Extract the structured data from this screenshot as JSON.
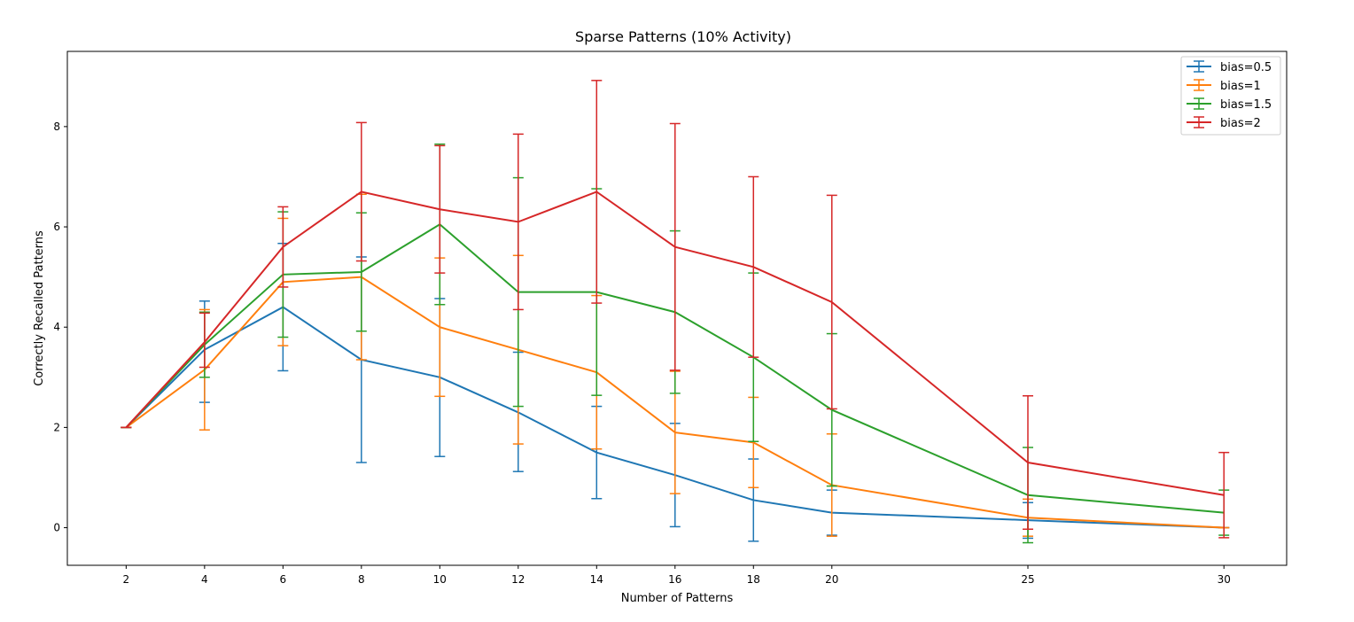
{
  "chart_data": {
    "type": "line",
    "title": "Sparse Patterns (10% Activity)",
    "xlabel": "Number of Patterns",
    "ylabel": "Correctly Recalled Patterns",
    "x": [
      2,
      4,
      6,
      8,
      10,
      12,
      14,
      16,
      18,
      20,
      25,
      30
    ],
    "xticks": [
      2,
      4,
      6,
      8,
      10,
      12,
      14,
      16,
      18,
      20,
      25,
      30
    ],
    "xlim": [
      0.5,
      31.6
    ],
    "yticks": [
      0,
      2,
      4,
      6,
      8
    ],
    "ylim": [
      -0.75,
      9.5
    ],
    "grid": false,
    "legend_position": "top-right",
    "series": [
      {
        "name": "bias=0.5",
        "color": "#1f77b4",
        "values": [
          2.0,
          3.55,
          4.4,
          3.35,
          3.0,
          2.3,
          1.5,
          1.05,
          0.55,
          0.3,
          0.15,
          0.0
        ],
        "lower": [
          2.0,
          2.5,
          3.13,
          1.3,
          1.42,
          1.12,
          0.58,
          0.02,
          -0.27,
          -0.15,
          -0.21,
          0.0
        ],
        "upper": [
          2.0,
          4.52,
          5.67,
          5.4,
          4.57,
          3.5,
          2.42,
          2.08,
          1.37,
          0.75,
          0.5,
          0.0
        ]
      },
      {
        "name": "bias=1",
        "color": "#ff7f0e",
        "values": [
          2.0,
          3.15,
          4.9,
          5.0,
          4.0,
          3.55,
          3.1,
          1.9,
          1.7,
          0.85,
          0.2,
          0.0
        ],
        "lower": [
          2.0,
          1.95,
          3.63,
          3.35,
          2.62,
          1.67,
          1.57,
          0.68,
          0.8,
          -0.17,
          -0.17,
          0.0
        ],
        "upper": [
          2.0,
          4.35,
          6.17,
          6.65,
          5.38,
          5.43,
          4.63,
          3.12,
          2.6,
          1.87,
          0.57,
          0.0
        ]
      },
      {
        "name": "bias=1.5",
        "color": "#2ca02c",
        "values": [
          2.0,
          3.65,
          5.05,
          5.1,
          6.05,
          4.7,
          4.7,
          4.3,
          3.4,
          2.35,
          0.65,
          0.3
        ],
        "lower": [
          2.0,
          3.0,
          3.8,
          3.92,
          4.45,
          2.42,
          2.64,
          2.68,
          1.72,
          0.83,
          -0.3,
          -0.15
        ],
        "upper": [
          2.0,
          4.3,
          6.3,
          6.28,
          7.65,
          6.98,
          6.76,
          5.92,
          5.08,
          3.87,
          1.6,
          0.75
        ]
      },
      {
        "name": "bias=2",
        "color": "#d62728",
        "values": [
          2.0,
          3.7,
          5.6,
          6.7,
          6.35,
          6.1,
          6.7,
          5.6,
          5.2,
          4.5,
          1.3,
          0.65
        ],
        "lower": [
          2.0,
          3.2,
          4.8,
          5.32,
          5.08,
          4.35,
          4.48,
          3.14,
          3.4,
          2.37,
          -0.03,
          -0.2
        ],
        "upper": [
          2.0,
          4.28,
          6.4,
          8.08,
          7.62,
          7.85,
          8.92,
          8.06,
          7.0,
          6.63,
          2.63,
          1.5
        ]
      }
    ]
  }
}
